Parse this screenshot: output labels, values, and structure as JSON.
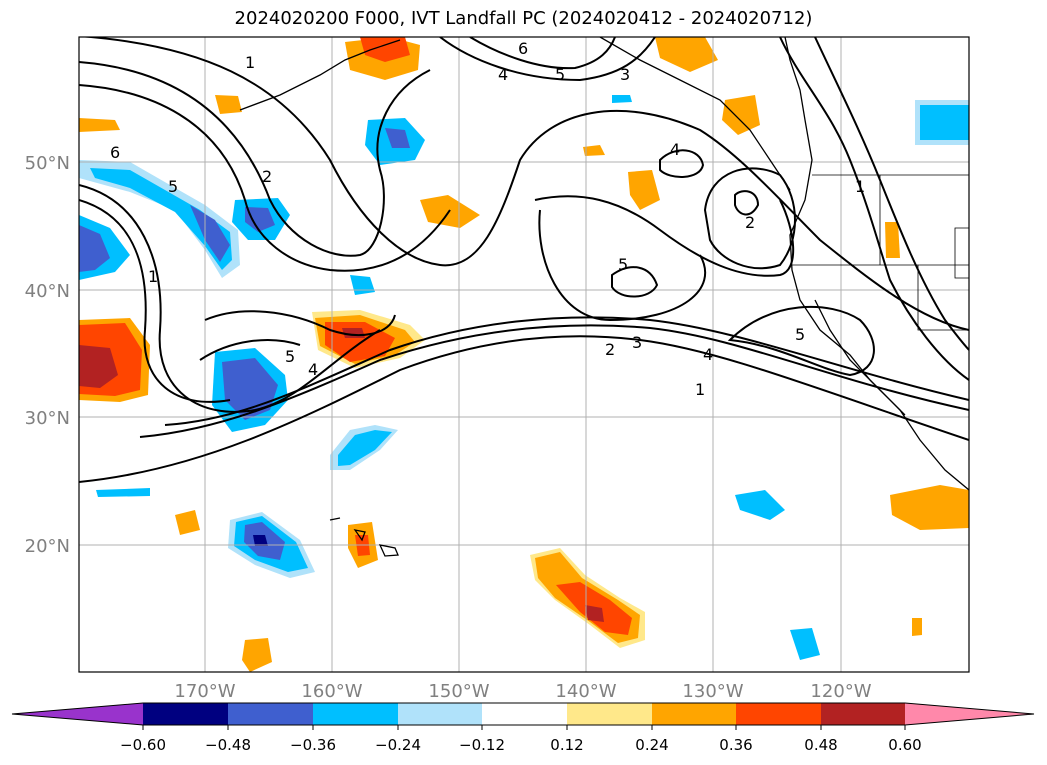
{
  "title": "2024020200 F000, IVT Landfall PC (2024020412 - 2024020712)",
  "map": {
    "lat_labels": [
      "50°N",
      "40°N",
      "30°N",
      "20°N"
    ],
    "lon_labels": [
      "170°W",
      "160°W",
      "150°W",
      "140°W",
      "130°W",
      "120°W"
    ],
    "contour_labels": [
      "1",
      "2",
      "3",
      "4",
      "5",
      "6"
    ]
  },
  "colorbar": {
    "tick_labels": [
      "−0.60",
      "−0.48",
      "−0.36",
      "−0.24",
      "−0.12",
      "0.12",
      "0.24",
      "0.36",
      "0.48",
      "0.60"
    ],
    "colors": [
      "#9933cc",
      "#000080",
      "#3f5fcf",
      "#00bfff",
      "#b0e2fa",
      "#ffffff",
      "#ffe88a",
      "#ffa500",
      "#ff4500",
      "#b22222",
      "#ff88aa"
    ]
  }
}
